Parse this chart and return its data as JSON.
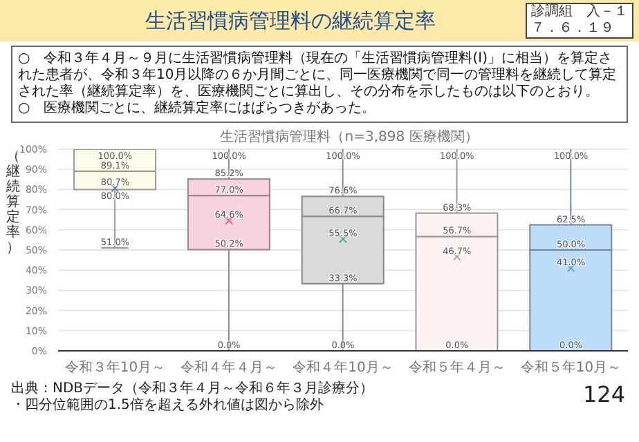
{
  "chart_data": {
    "type": "box",
    "title": "生活習慣病管理料の継続算定率",
    "subtitle": "生活習慣病管理料（n=3,898 医療機関）",
    "ylabel": "（継続算定率）",
    "categories": [
      "令和３年10月～",
      "令和４年４月～",
      "令和４年10月～",
      "令和５年４月～",
      "令和５年10月～"
    ],
    "boxes": [
      {
        "low": 51.0,
        "q1": 80.0,
        "median": 89.1,
        "q3": 100.0,
        "high": 100.0
      },
      {
        "low": 0.0,
        "q1": 50.2,
        "median": 77.0,
        "q3": 85.2,
        "high": 100.0
      },
      {
        "low": 0.0,
        "q1": 33.3,
        "median": 66.7,
        "q3": 76.6,
        "high": 100.0
      },
      {
        "low": 0.0,
        "q1": 0.0,
        "median": 56.7,
        "q3": 68.3,
        "high": 100.0
      },
      {
        "low": 0.0,
        "q1": 0.0,
        "median": 50.0,
        "q3": 62.5,
        "high": 100.0
      }
    ],
    "series": [
      {
        "type": "scatter",
        "x": [
          "令和３年10月～",
          "令和４年４月～",
          "令和４年10月～",
          "令和５年４月～",
          "令和５年10月～"
        ],
        "values": [
          80.7,
          64.6,
          55.5,
          46.7,
          41.0
        ],
        "colors": [
          "#4a7fc0",
          "#d9607a",
          "#4aa8a0",
          "#b0a0a0",
          "#6a9fd0"
        ]
      }
    ],
    "marker": "cross",
    "colors": [
      "#fdfbe9",
      "#f7d4dd",
      "#d9d9d9",
      "#fdf2f2",
      "#bddcf8"
    ],
    "ylim": [
      0,
      100
    ],
    "yticks": [
      {
        "value": 0,
        "label": "0%"
      },
      {
        "value": 10,
        "label": "10%"
      },
      {
        "value": 20,
        "label": "20%"
      },
      {
        "value": 30,
        "label": "30%"
      },
      {
        "value": 40,
        "label": "40%"
      },
      {
        "value": 50,
        "label": "50%"
      },
      {
        "value": 60,
        "label": "60%"
      },
      {
        "value": 70,
        "label": "70%"
      },
      {
        "value": 80,
        "label": "80%"
      },
      {
        "value": 90,
        "label": "90%"
      },
      {
        "value": 100,
        "label": "100%"
      }
    ],
    "grid": "y",
    "annotations": [
      "診調組　入－１",
      "７．６．１９",
      "○　令和３年４月～９月に生活習慣病管理料（現在の「生活習慣病管理料(Ⅰ)」に相当）を算定された患者が、令和３年10月以降の６か月間ごとに、同一医療機関で同一の管理料を継続して算定された率（継続算定率）を、医療機関ごとに算出し、その分布を示したものは以下のとおり。",
      "○　医療機関ごとに、継続算定率にはばらつきがあった。",
      "出典：NDBデータ（令和３年４月～令和６年３月診療分）",
      "・四分位範囲の1.5倍を超える外れ値は図から除外",
      "124",
      {
        "text": "100.0%",
        "x": "令和３年10月～",
        "y": 100.0
      },
      {
        "text": "89.1%",
        "x": "令和３年10月～",
        "y": 89.1
      },
      {
        "text": "80.7%",
        "x": "令和３年10月～",
        "y": 80.7
      },
      {
        "text": "80.0%",
        "x": "令和３年10月～",
        "y": 80.0
      },
      {
        "text": "51.0%",
        "x": "令和３年10月～",
        "y": 51.0
      },
      {
        "text": "100.0%",
        "x": "令和４年４月～",
        "y": 100.0
      },
      {
        "text": "85.2%",
        "x": "令和４年４月～",
        "y": 85.2
      },
      {
        "text": "77.0%",
        "x": "令和４年４月～",
        "y": 77.0
      },
      {
        "text": "64.6%",
        "x": "令和４年４月～",
        "y": 64.6
      },
      {
        "text": "50.2%",
        "x": "令和４年４月～",
        "y": 50.2
      },
      {
        "text": "0.0%",
        "x": "令和４年４月～",
        "y": 0.0
      },
      {
        "text": "100.0%",
        "x": "令和４年10月～",
        "y": 100.0
      },
      {
        "text": "76.6%",
        "x": "令和４年10月～",
        "y": 76.6
      },
      {
        "text": "66.7%",
        "x": "令和４年10月～",
        "y": 66.7
      },
      {
        "text": "55.5%",
        "x": "令和４年10月～",
        "y": 55.5
      },
      {
        "text": "33.3%",
        "x": "令和４年10月～",
        "y": 33.3
      },
      {
        "text": "0.0%",
        "x": "令和４年10月～",
        "y": 0.0
      },
      {
        "text": "100.0%",
        "x": "令和５年４月～",
        "y": 100.0
      },
      {
        "text": "68.3%",
        "x": "令和５年４月～",
        "y": 68.3
      },
      {
        "text": "56.7%",
        "x": "令和５年４月～",
        "y": 56.7
      },
      {
        "text": "46.7%",
        "x": "令和５年４月～",
        "y": 46.7
      },
      {
        "text": "0.0%",
        "x": "令和５年４月～",
        "y": 0.0
      },
      {
        "text": "100.0%",
        "x": "令和５年10月～",
        "y": 100.0
      },
      {
        "text": "62.5%",
        "x": "令和５年10月～",
        "y": 62.5
      },
      {
        "text": "50.0%",
        "x": "令和５年10月～",
        "y": 50.0
      },
      {
        "text": "41.0%",
        "x": "令和５年10月～",
        "y": 41.0
      },
      {
        "text": "0.0%",
        "x": "令和５年10月～",
        "y": 0.0
      }
    ]
  }
}
